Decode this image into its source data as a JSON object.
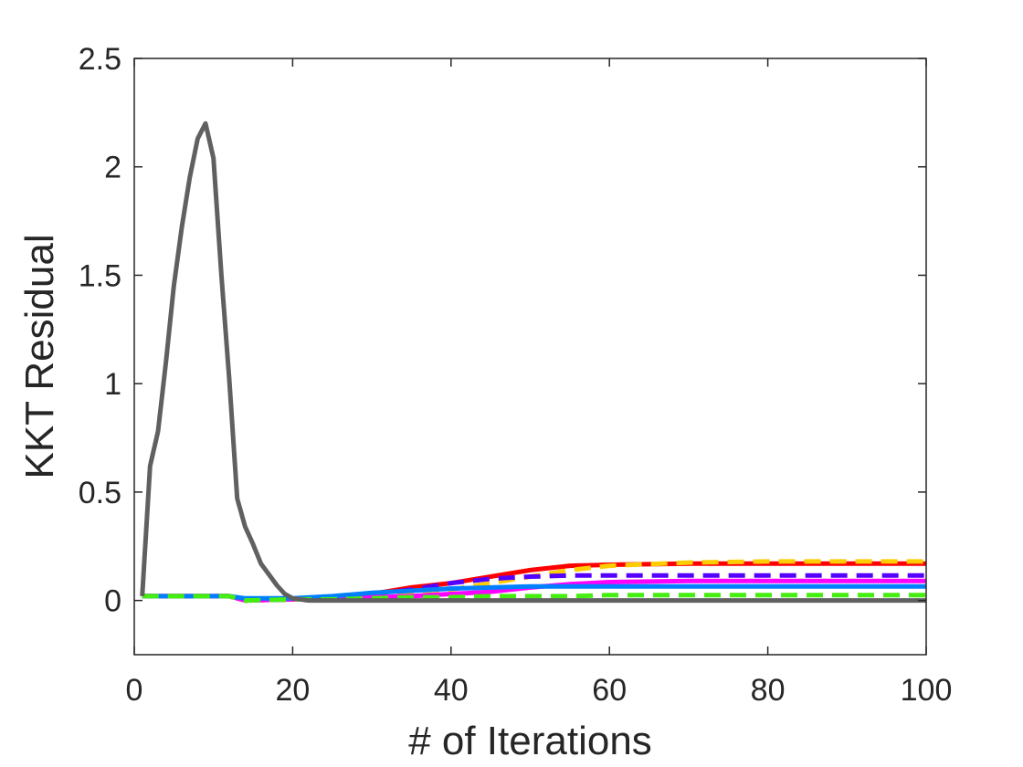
{
  "chart_data": {
    "type": "line",
    "title": "",
    "xlabel": "# of Iterations",
    "ylabel": "KKT Residual",
    "xlim": [
      0,
      100
    ],
    "ylim": [
      -0.25,
      2.5
    ],
    "xticks": [
      0,
      20,
      40,
      60,
      80,
      100
    ],
    "yticks": [
      0,
      0.5,
      1,
      1.5,
      2,
      2.5
    ],
    "xtick_labels": [
      "0",
      "20",
      "40",
      "60",
      "80",
      "100"
    ],
    "ytick_labels": [
      "0",
      "0.5",
      "1",
      "1.5",
      "2",
      "2.5"
    ],
    "grid": false,
    "legend": "none",
    "series": [
      {
        "color": "#ff0000",
        "dash": "solid",
        "x": [
          1,
          12,
          14,
          20,
          25,
          30,
          35,
          40,
          45,
          50,
          55,
          60,
          70,
          80,
          90,
          100
        ],
        "y": [
          0.02,
          0.02,
          0.0,
          0.005,
          0.015,
          0.03,
          0.06,
          0.08,
          0.11,
          0.14,
          0.16,
          0.165,
          0.17,
          0.17,
          0.17,
          0.17
        ]
      },
      {
        "color": "#ffcc00",
        "dash": "dashed",
        "x": [
          1,
          12,
          14,
          20,
          25,
          30,
          35,
          40,
          45,
          50,
          55,
          60,
          70,
          80,
          90,
          100
        ],
        "y": [
          0.02,
          0.02,
          0.0,
          0.005,
          0.01,
          0.02,
          0.03,
          0.05,
          0.08,
          0.11,
          0.14,
          0.16,
          0.175,
          0.18,
          0.18,
          0.18
        ]
      },
      {
        "color": "#5500ff",
        "dash": "dashed",
        "x": [
          1,
          12,
          14,
          20,
          25,
          30,
          35,
          40,
          45,
          50,
          55,
          60,
          70,
          80,
          90,
          100
        ],
        "y": [
          0.02,
          0.02,
          0.0,
          0.005,
          0.015,
          0.03,
          0.05,
          0.08,
          0.1,
          0.11,
          0.115,
          0.115,
          0.115,
          0.115,
          0.115,
          0.115
        ]
      },
      {
        "color": "#ff00ff",
        "dash": "solid",
        "x": [
          1,
          12,
          14,
          20,
          25,
          30,
          35,
          40,
          45,
          50,
          55,
          60,
          70,
          80,
          90,
          100
        ],
        "y": [
          0.02,
          0.02,
          0.0,
          0.005,
          0.01,
          0.015,
          0.02,
          0.03,
          0.04,
          0.06,
          0.075,
          0.085,
          0.09,
          0.09,
          0.09,
          0.09
        ]
      },
      {
        "color": "#0080ff",
        "dash": "solid",
        "x": [
          1,
          12,
          14,
          20,
          25,
          30,
          35,
          40,
          45,
          50,
          55,
          60,
          70,
          80,
          90,
          100
        ],
        "y": [
          0.02,
          0.02,
          0.01,
          0.01,
          0.02,
          0.035,
          0.045,
          0.055,
          0.06,
          0.065,
          0.065,
          0.065,
          0.065,
          0.065,
          0.065,
          0.065
        ]
      },
      {
        "color": "#44ee11",
        "dash": "dashed",
        "x": [
          1,
          12,
          14,
          20,
          25,
          30,
          35,
          40,
          45,
          50,
          55,
          60,
          70,
          80,
          90,
          100
        ],
        "y": [
          0.02,
          0.02,
          0.0,
          0.005,
          0.005,
          0.01,
          0.015,
          0.015,
          0.02,
          0.02,
          0.02,
          0.025,
          0.025,
          0.025,
          0.025,
          0.025
        ]
      },
      {
        "color": "#606060",
        "dash": "solid",
        "x": [
          1,
          2,
          3,
          4,
          5,
          6,
          7,
          8,
          9,
          10,
          11,
          12,
          13,
          14,
          15,
          16,
          17,
          18,
          19,
          20,
          22,
          30,
          40,
          60,
          80,
          100
        ],
        "y": [
          0.02,
          0.62,
          0.78,
          1.1,
          1.45,
          1.72,
          1.95,
          2.13,
          2.2,
          2.04,
          1.5,
          1.02,
          0.47,
          0.34,
          0.26,
          0.17,
          0.12,
          0.07,
          0.03,
          0.01,
          0.0,
          0.0,
          0.0,
          0.0,
          0.0,
          0.0
        ]
      }
    ]
  }
}
